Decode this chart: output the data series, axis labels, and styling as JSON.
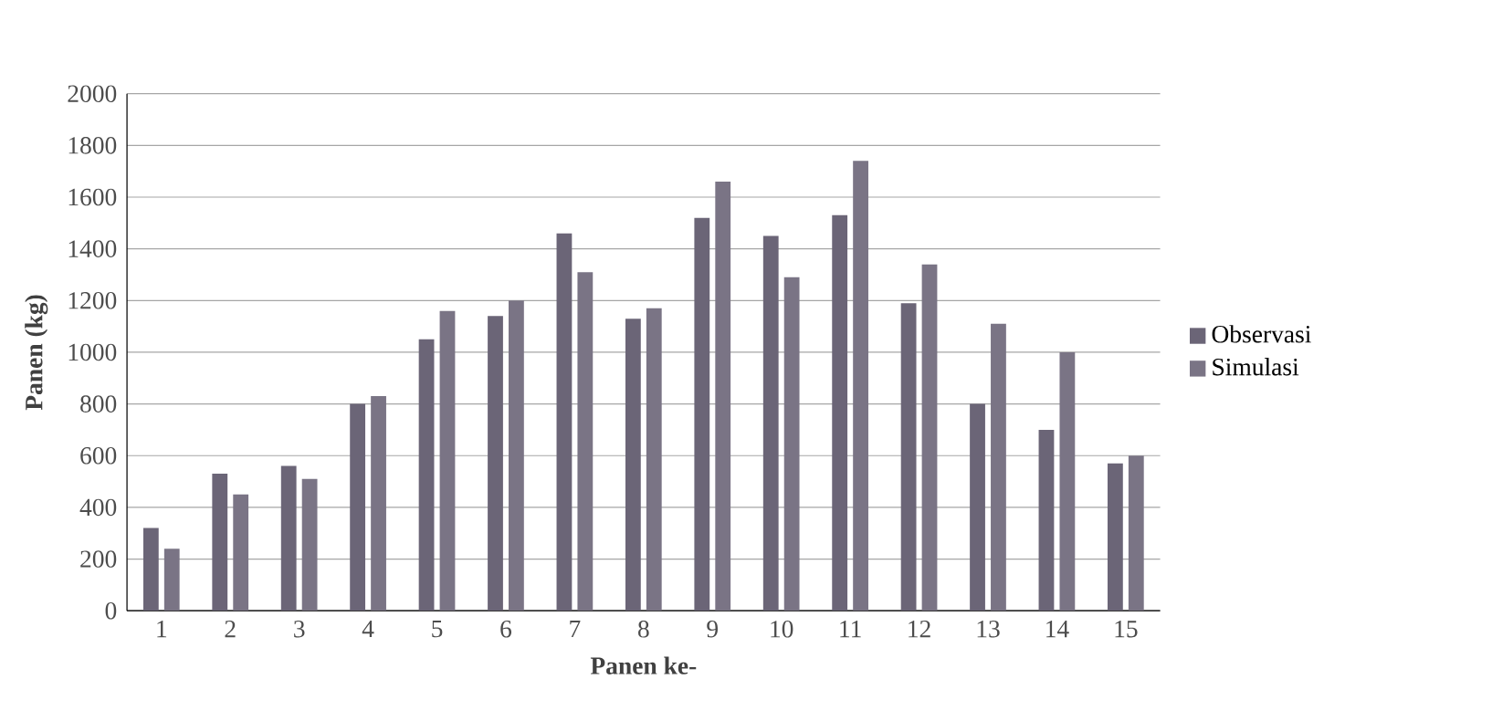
{
  "chart_data": {
    "type": "bar",
    "xlabel": "Panen ke-",
    "ylabel": "Panen (kg)",
    "categories": [
      "1",
      "2",
      "3",
      "4",
      "5",
      "6",
      "7",
      "8",
      "9",
      "10",
      "11",
      "12",
      "13",
      "14",
      "15"
    ],
    "series": [
      {
        "name": "Observasi",
        "color": "#6b6577",
        "values": [
          320,
          530,
          560,
          800,
          1050,
          1140,
          1460,
          1130,
          1520,
          1450,
          1530,
          1190,
          800,
          700,
          570
        ]
      },
      {
        "name": "Simulasi",
        "color": "#7a7485",
        "values": [
          240,
          450,
          510,
          830,
          1160,
          1200,
          1310,
          1170,
          1660,
          1290,
          1740,
          1340,
          1110,
          1000,
          600
        ]
      }
    ],
    "ylim": [
      0,
      2000
    ],
    "yticks": [
      0,
      200,
      400,
      600,
      800,
      1000,
      1200,
      1400,
      1600,
      1800,
      2000
    ],
    "grid": "y",
    "legend": "right"
  }
}
